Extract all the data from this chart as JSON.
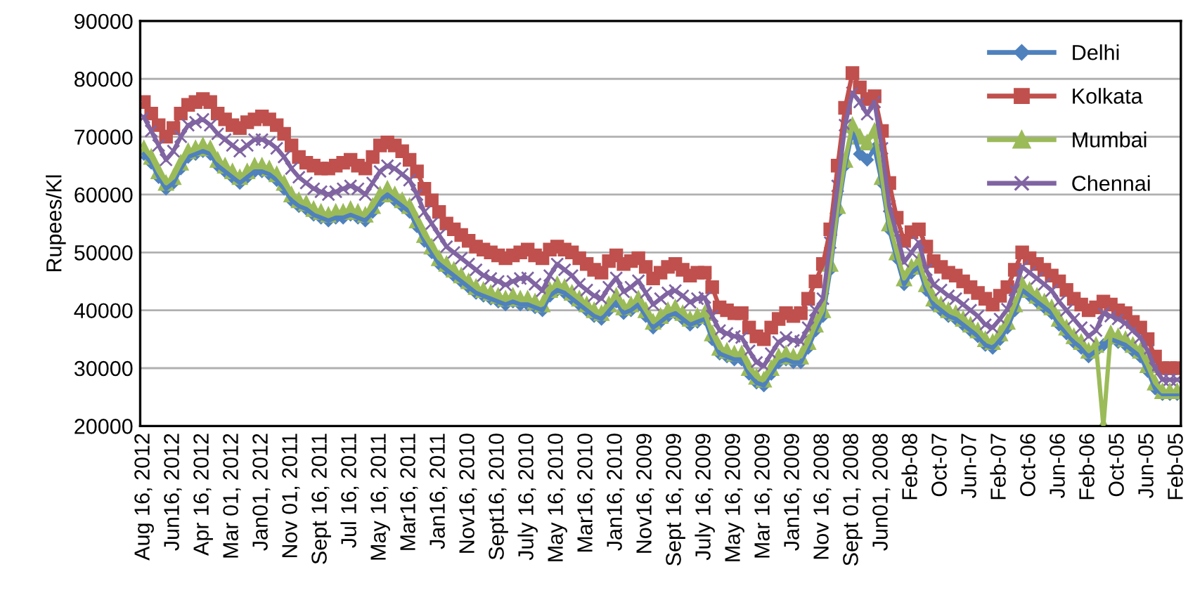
{
  "chart_data": {
    "type": "line",
    "ylabel": "Rupees/Kl",
    "categories": [
      "Aug 16, 2012",
      null,
      null,
      null,
      "Jun16, 2012",
      null,
      null,
      null,
      "Apr 16, 2012",
      null,
      null,
      null,
      "Mar 01, 2012",
      null,
      null,
      null,
      "Jan01, 2012",
      null,
      null,
      null,
      "Nov 01, 2011",
      null,
      null,
      null,
      "Sept 16, 2011",
      null,
      null,
      null,
      "Jul 16, 2011",
      null,
      null,
      null,
      "May 16, 2011",
      null,
      null,
      null,
      "Mar16, 2011",
      null,
      null,
      null,
      "Jan16, 2011",
      null,
      null,
      null,
      "Nov16, 2010",
      null,
      null,
      null,
      "Sept16, 2010",
      null,
      null,
      null,
      "July 16, 2010",
      null,
      null,
      null,
      "May 16, 2010",
      null,
      null,
      null,
      "Mar16, 2010",
      null,
      null,
      null,
      "Jan16, 2010",
      null,
      null,
      null,
      "Nov16, 2009",
      null,
      null,
      null,
      "Sept 16, 2009",
      null,
      null,
      null,
      "July 16, 2009",
      null,
      null,
      null,
      "May 16, 2009",
      null,
      null,
      null,
      "Mar 16, 2009",
      null,
      null,
      null,
      "Jan16, 2009",
      null,
      null,
      null,
      "Nov 16, 2008",
      null,
      null,
      null,
      "Sept 01, 2008",
      null,
      null,
      null,
      "Jun01, 2008",
      null,
      null,
      null,
      "Feb-08",
      null,
      null,
      null,
      "Oct-07",
      null,
      null,
      null,
      "Jun-07",
      null,
      null,
      null,
      "Feb-07",
      null,
      null,
      null,
      "Oct-06",
      null,
      null,
      null,
      "Jun-06",
      null,
      null,
      null,
      "Feb-06",
      null,
      null,
      null,
      "Oct-05",
      null,
      null,
      null,
      "Jun-05",
      null,
      null,
      null,
      "Feb-05"
    ],
    "series": [
      {
        "name": "Delhi",
        "color": "#4f81bd",
        "marker": "diamond",
        "values": [
          67000,
          65500,
          63000,
          61000,
          62000,
          64500,
          66500,
          67000,
          67500,
          67000,
          65000,
          64000,
          63000,
          62000,
          63000,
          64000,
          64000,
          63500,
          62500,
          61000,
          59000,
          58000,
          57500,
          56500,
          56000,
          55500,
          56000,
          56000,
          56500,
          56000,
          55500,
          57000,
          59000,
          60000,
          59000,
          58000,
          57000,
          54500,
          52000,
          50000,
          48000,
          47000,
          46000,
          45000,
          44000,
          43000,
          42500,
          42000,
          41500,
          41000,
          41500,
          41000,
          41000,
          40500,
          40000,
          42500,
          43500,
          43000,
          42000,
          41000,
          40000,
          39000,
          38500,
          40000,
          41500,
          39500,
          40000,
          41000,
          39000,
          37000,
          38000,
          39000,
          39500,
          38500,
          37500,
          38000,
          38500,
          35000,
          32500,
          32000,
          31500,
          31500,
          29000,
          27500,
          27000,
          29000,
          31000,
          31500,
          31000,
          31000,
          33500,
          36500,
          39000,
          47000,
          57000,
          65000,
          71000,
          67000,
          66000,
          68000,
          62000,
          54000,
          49000,
          44500,
          46500,
          47500,
          43500,
          41000,
          40000,
          39000,
          38500,
          37500,
          36500,
          35500,
          34000,
          33500,
          35000,
          37000,
          40000,
          43500,
          42500,
          41500,
          40500,
          39500,
          37500,
          36000,
          34500,
          33500,
          32000,
          33000,
          34000,
          35000,
          34500,
          34000,
          33000,
          32000,
          29500,
          26500,
          25500,
          25500,
          25500
        ]
      },
      {
        "name": "Kolkata",
        "color": "#c0504d",
        "marker": "square",
        "values": [
          76000,
          74000,
          72000,
          70000,
          71500,
          74000,
          75500,
          76000,
          76500,
          76000,
          74000,
          73000,
          72000,
          71500,
          72500,
          73000,
          73500,
          73000,
          72000,
          70500,
          68500,
          66500,
          65500,
          65000,
          64500,
          64500,
          65000,
          65500,
          66000,
          65000,
          64500,
          66500,
          68500,
          69000,
          68500,
          67500,
          66000,
          64000,
          61000,
          59000,
          57000,
          55000,
          54000,
          53000,
          52000,
          51000,
          50500,
          50000,
          49500,
          49000,
          49500,
          50000,
          50500,
          49500,
          49000,
          50500,
          51000,
          50500,
          50000,
          49000,
          48000,
          47000,
          46500,
          48500,
          49500,
          48000,
          48500,
          49000,
          47500,
          45500,
          46500,
          47500,
          48000,
          47000,
          46000,
          46500,
          46500,
          44000,
          40500,
          40000,
          39500,
          39500,
          37000,
          35500,
          35000,
          37000,
          38500,
          39500,
          39000,
          39500,
          42000,
          45000,
          48000,
          54000,
          65000,
          75000,
          81000,
          78500,
          76500,
          77000,
          71000,
          62000,
          56000,
          52000,
          53500,
          54000,
          51000,
          48500,
          47500,
          46500,
          46000,
          45000,
          44000,
          43000,
          42000,
          41000,
          42500,
          44000,
          47000,
          50000,
          49000,
          48000,
          47000,
          46000,
          45000,
          43500,
          42000,
          41000,
          40000,
          40500,
          41500,
          41000,
          40000,
          39500,
          38000,
          37000,
          35000,
          32000,
          30000,
          30000,
          30000
        ]
      },
      {
        "name": "Mumbai",
        "color": "#9bbb59",
        "marker": "triangle",
        "values": [
          68000,
          66500,
          64000,
          62000,
          63000,
          65500,
          67500,
          68000,
          68500,
          68000,
          66000,
          65000,
          64000,
          63000,
          64000,
          65000,
          65000,
          64500,
          63500,
          62000,
          60000,
          59000,
          58500,
          57500,
          57000,
          56500,
          57000,
          57000,
          57500,
          57000,
          56500,
          58000,
          60000,
          61000,
          60000,
          59000,
          58000,
          55500,
          53000,
          51000,
          49000,
          48000,
          47000,
          46000,
          45000,
          44000,
          43500,
          43000,
          42500,
          42000,
          42500,
          42000,
          42000,
          41500,
          41000,
          43500,
          44500,
          44000,
          43000,
          42000,
          41000,
          40000,
          39500,
          41000,
          42500,
          40500,
          41000,
          42000,
          40000,
          38000,
          39000,
          40000,
          40500,
          39500,
          38500,
          39000,
          39500,
          36000,
          33500,
          33000,
          32500,
          32500,
          30000,
          28500,
          28000,
          30000,
          32000,
          32500,
          32000,
          32000,
          34500,
          37500,
          40000,
          48000,
          58000,
          66000,
          72000,
          70000,
          69000,
          71000,
          63000,
          55000,
          50000,
          45500,
          47500,
          48500,
          44500,
          42000,
          41000,
          40000,
          39500,
          38500,
          37500,
          36500,
          35000,
          34500,
          36000,
          38000,
          41000,
          44500,
          43500,
          42500,
          41500,
          40500,
          38500,
          37000,
          35500,
          34500,
          33000,
          34000,
          20000,
          36000,
          35500,
          35000,
          34000,
          33000,
          30500,
          27500,
          26000,
          26000,
          26000
        ]
      },
      {
        "name": "Chennai",
        "color": "#8064a2",
        "marker": "cross",
        "values": [
          73400,
          71000,
          68500,
          66000,
          67500,
          70000,
          72000,
          72500,
          73000,
          72000,
          70500,
          69500,
          68500,
          67500,
          68500,
          69500,
          69500,
          69000,
          68000,
          66500,
          64500,
          63000,
          62000,
          61000,
          60500,
          60000,
          60500,
          61000,
          61500,
          61000,
          60000,
          62000,
          64000,
          65000,
          64500,
          63500,
          62500,
          60000,
          57000,
          55000,
          53000,
          51000,
          50000,
          49000,
          48000,
          47000,
          46000,
          45500,
          45000,
          44400,
          45000,
          45500,
          45600,
          44500,
          43400,
          46000,
          48000,
          47000,
          46000,
          44500,
          43500,
          42500,
          42000,
          44000,
          45600,
          43200,
          44000,
          45100,
          43000,
          41000,
          42000,
          43000,
          43400,
          42500,
          41400,
          42000,
          42200,
          39000,
          36500,
          36000,
          35500,
          35300,
          33000,
          31000,
          30400,
          32500,
          34500,
          35300,
          34800,
          34600,
          37000,
          40000,
          42000,
          51700,
          61500,
          72000,
          77600,
          76000,
          73900,
          76000,
          68000,
          58000,
          53200,
          48300,
          50000,
          51700,
          47000,
          44400,
          43500,
          42500,
          42000,
          41000,
          40000,
          39000,
          37500,
          37000,
          38500,
          40200,
          43500,
          47500,
          46500,
          45500,
          44500,
          43400,
          41500,
          40000,
          38500,
          37000,
          35500,
          36500,
          39500,
          39000,
          38500,
          37800,
          36500,
          35300,
          33000,
          30000,
          28000,
          28000,
          28000
        ]
      }
    ],
    "ylim": [
      20000,
      90000
    ],
    "yticks": [
      20000,
      30000,
      40000,
      50000,
      60000,
      70000,
      80000,
      90000
    ],
    "grid": "y",
    "legend": "top right"
  }
}
